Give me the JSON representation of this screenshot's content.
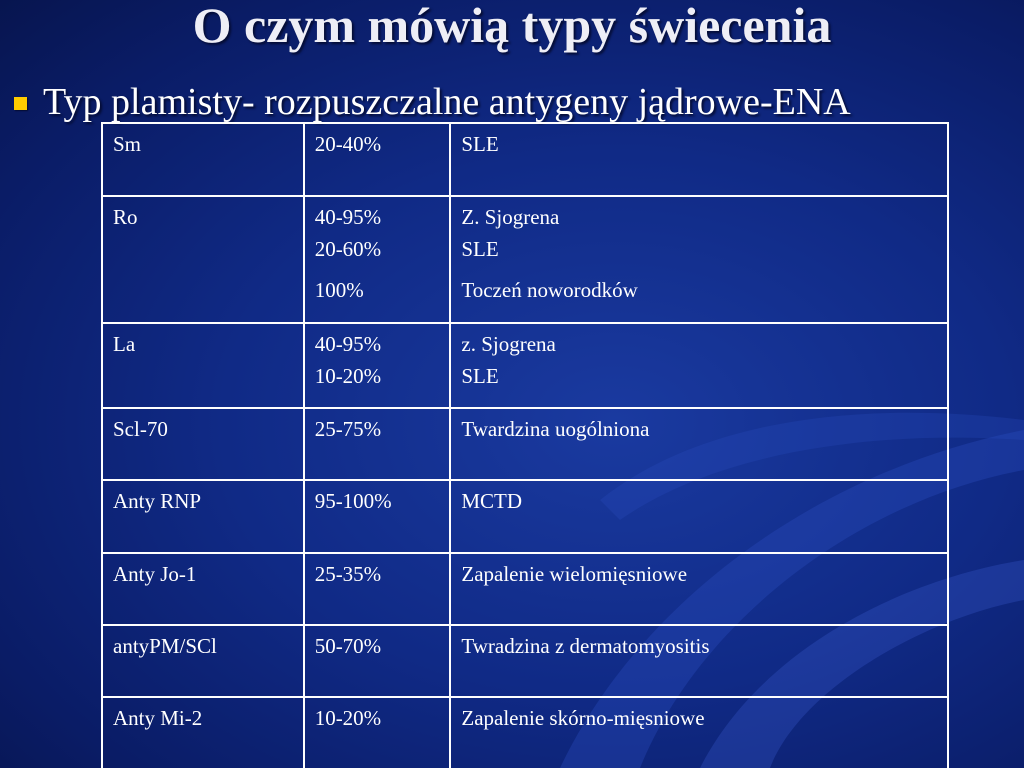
{
  "slide": {
    "title": "O czym mówią typy świecenia",
    "bullet": "Typ plamisty- rozpuszczalne antygeny jądrowe-ENA"
  },
  "colors": {
    "background": "#102a86",
    "bullet": "#ffcc00",
    "text": "#ffffff"
  },
  "table": {
    "rows": [
      {
        "antigen": "Sm",
        "freq": [
          "20-40%"
        ],
        "disease": [
          "SLE"
        ]
      },
      {
        "antigen": "Ro",
        "freq": [
          "40-95%",
          "20-60%",
          "100%"
        ],
        "disease": [
          "Z. Sjogrena",
          "SLE",
          "Toczeń noworodków"
        ]
      },
      {
        "antigen": "La",
        "freq": [
          "40-95%",
          "10-20%"
        ],
        "disease": [
          "z. Sjogrena",
          "SLE"
        ]
      },
      {
        "antigen": "Scl-70",
        "freq": [
          "25-75%"
        ],
        "disease": [
          "Twardzina uogólniona"
        ]
      },
      {
        "antigen": "Anty RNP",
        "freq": [
          "95-100%"
        ],
        "disease": [
          "MCTD"
        ]
      },
      {
        "antigen": "Anty Jo-1",
        "freq": [
          "25-35%"
        ],
        "disease": [
          "Zapalenie wielomięsniowe"
        ]
      },
      {
        "antigen": "antyPM/SCl",
        "freq": [
          "50-70%"
        ],
        "disease": [
          "Twradzina z dermatomyositis"
        ]
      },
      {
        "antigen": "Anty Mi-2",
        "freq": [
          "10-20%"
        ],
        "disease": [
          "Zapalenie skórno-mięsniowe"
        ]
      }
    ]
  }
}
